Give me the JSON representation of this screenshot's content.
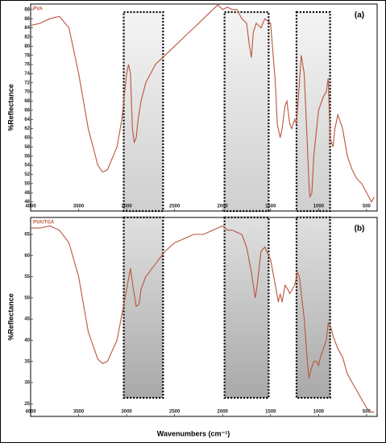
{
  "chart_data": [
    {
      "type": "line",
      "title": "(a)",
      "ylabel": "%Reflectance",
      "x": [
        4000,
        3900,
        3800,
        3700,
        3600,
        3500,
        3400,
        3300,
        3250,
        3200,
        3100,
        3050,
        3000,
        2980,
        2960,
        2940,
        2920,
        2900,
        2880,
        2850,
        2800,
        2700,
        2600,
        2500,
        2400,
        2300,
        2200,
        2100,
        2050,
        2000,
        1950,
        1900,
        1850,
        1800,
        1750,
        1720,
        1700,
        1680,
        1650,
        1600,
        1560,
        1500,
        1450,
        1430,
        1400,
        1380,
        1350,
        1330,
        1300,
        1280,
        1250,
        1230,
        1200,
        1180,
        1150,
        1120,
        1100,
        1090,
        1070,
        1050,
        1000,
        950,
        920,
        900,
        880,
        850,
        830,
        800,
        750,
        700,
        650,
        600,
        550,
        500,
        450,
        420
      ],
      "series": [
        {
          "name": "PVA",
          "color": "#b9553e",
          "values": [
            84.5,
            85,
            86,
            86.5,
            84,
            74,
            62,
            54,
            52.5,
            53,
            58,
            64,
            74,
            76,
            74,
            62,
            59,
            60,
            64,
            68,
            72,
            76,
            78,
            80,
            82,
            84,
            86,
            88,
            89,
            88,
            88.5,
            88,
            88,
            86,
            85,
            80,
            77.5,
            83,
            85,
            84,
            86,
            85,
            72,
            63,
            60,
            62,
            67,
            68,
            63,
            62,
            64,
            63,
            72,
            78,
            74,
            60,
            50,
            47,
            48,
            56,
            66,
            69,
            70,
            73,
            60,
            58,
            62,
            65,
            62,
            56,
            53,
            51,
            50,
            48,
            46,
            47
          ]
        }
      ],
      "xlim": [
        4000,
        390
      ],
      "xticks": [
        4000,
        3500,
        3000,
        2500,
        2000,
        1500,
        1000,
        500
      ],
      "ylim": [
        44,
        89.2
      ],
      "yticks": [
        46,
        48,
        50,
        52,
        54,
        56,
        58,
        60,
        62,
        64,
        66,
        68,
        70,
        72,
        74,
        76,
        78,
        80,
        82,
        84,
        86,
        88
      ],
      "shaded_regions": [
        [
          3030,
          2620
        ],
        [
          1980,
          1520
        ],
        [
          1230,
          880
        ]
      ]
    },
    {
      "type": "line",
      "title": "(b)",
      "ylabel": "%Reflectance",
      "xlabel": "Wavenumbers (cm⁻¹)",
      "x": [
        4000,
        3900,
        3800,
        3700,
        3600,
        3500,
        3400,
        3300,
        3250,
        3200,
        3100,
        3050,
        3000,
        2960,
        2930,
        2900,
        2870,
        2850,
        2800,
        2700,
        2600,
        2500,
        2400,
        2300,
        2200,
        2100,
        2000,
        1950,
        1900,
        1800,
        1750,
        1700,
        1660,
        1640,
        1600,
        1560,
        1500,
        1450,
        1420,
        1400,
        1380,
        1350,
        1320,
        1300,
        1250,
        1220,
        1200,
        1150,
        1120,
        1100,
        1080,
        1050,
        1020,
        1000,
        980,
        950,
        920,
        900,
        870,
        850,
        800,
        750,
        700,
        650,
        600,
        550,
        500,
        450,
        420
      ],
      "series": [
        {
          "name": "PVA/TGA",
          "color": "#b9553e",
          "values": [
            66.5,
            66.5,
            67,
            66,
            63,
            55,
            42,
            35.5,
            34.5,
            35,
            40,
            46,
            52,
            57,
            52,
            48,
            48.5,
            52,
            55,
            58,
            61,
            63,
            64,
            65,
            65,
            66,
            67,
            66,
            66,
            65,
            62,
            56,
            50,
            53,
            61,
            62,
            59,
            53,
            49,
            51,
            49,
            53,
            52,
            51,
            53,
            56,
            55,
            45,
            36,
            31,
            33,
            35,
            35,
            34,
            36,
            38,
            40,
            44,
            43,
            41,
            38,
            36,
            32,
            30,
            28,
            26,
            24,
            23,
            23
          ]
        }
      ],
      "xlim": [
        4000,
        390
      ],
      "xticks": [
        4000,
        3500,
        3000,
        2500,
        2000,
        1500,
        1000,
        500
      ],
      "ylim": [
        22,
        69
      ],
      "yticks": [
        25,
        30,
        35,
        40,
        45,
        50,
        55,
        60,
        65
      ],
      "shaded_regions": [
        [
          3030,
          2620
        ],
        [
          1980,
          1520
        ],
        [
          1230,
          880
        ]
      ]
    }
  ]
}
